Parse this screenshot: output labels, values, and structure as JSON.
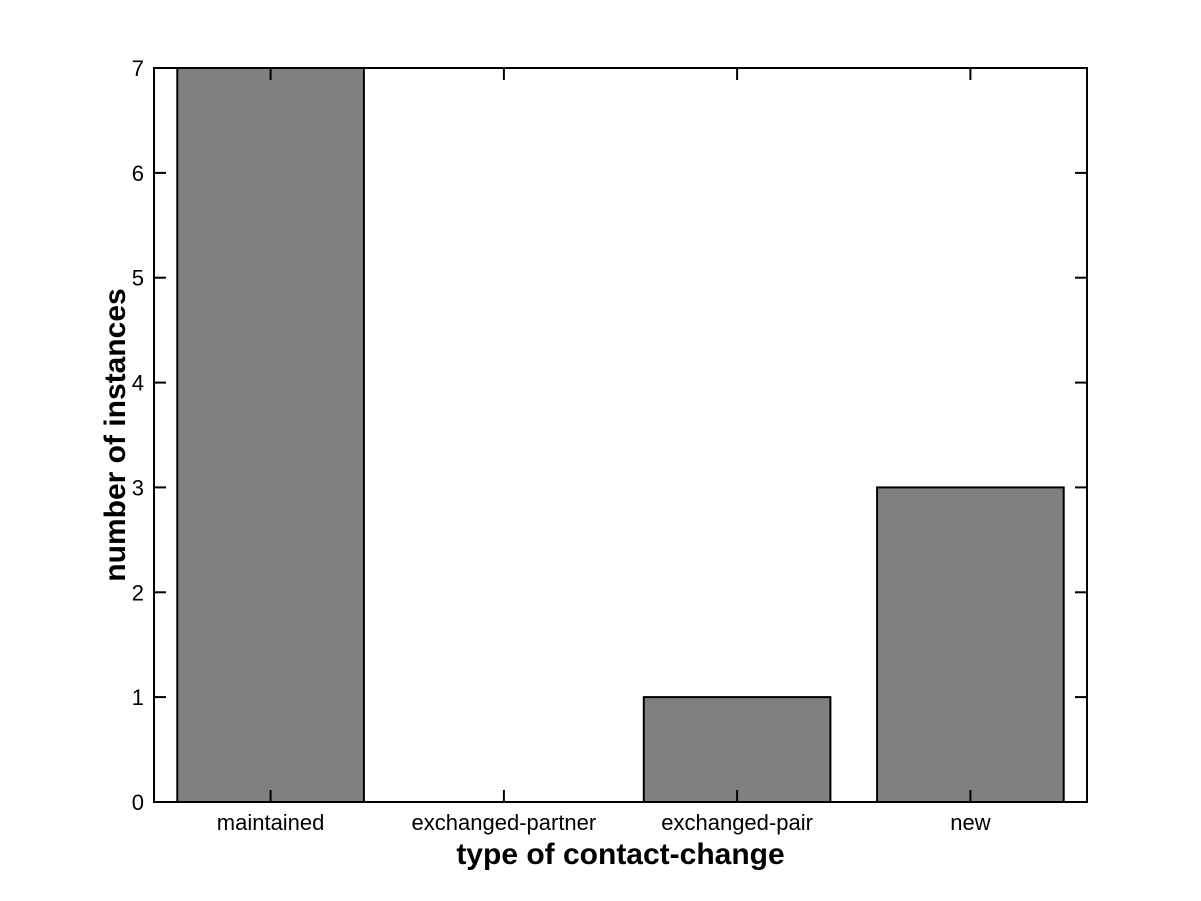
{
  "chart_data": {
    "type": "bar",
    "categories": [
      "maintained",
      "exchanged-partner",
      "exchanged-pair",
      "new"
    ],
    "values": [
      7,
      0,
      1,
      3
    ],
    "title": "",
    "xlabel": "type of contact-change",
    "ylabel": "number of instances",
    "ylim": [
      0,
      7
    ],
    "yticks": [
      0,
      1,
      2,
      3,
      4,
      5,
      6,
      7
    ],
    "bar_width_fraction": 0.8,
    "bar_color": "#808080",
    "bar_edge_color": "#000000",
    "axis_color": "#000000",
    "background_color": "#ffffff",
    "grid": "off",
    "legend": "none"
  }
}
